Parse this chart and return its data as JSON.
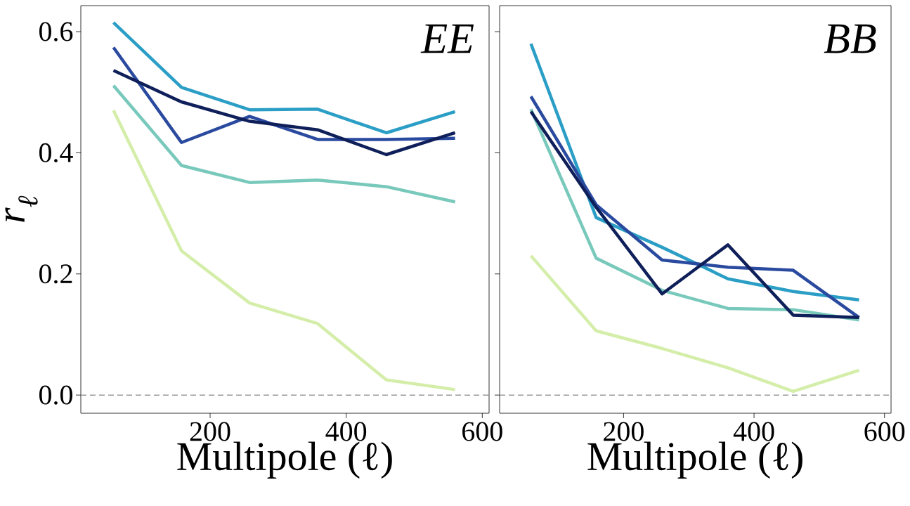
{
  "chart_data": [
    {
      "type": "line",
      "x": [
        58,
        158,
        258,
        358,
        459,
        560
      ],
      "xlim": [
        10,
        610
      ],
      "ylim": [
        -0.03,
        0.643
      ],
      "xticks": [
        200,
        400,
        600
      ],
      "yticks": [
        {
          "value": 0,
          "label": "0.0"
        },
        {
          "value": 0.2,
          "label": "0.2"
        },
        {
          "value": 0.4,
          "label": "0.4"
        },
        {
          "value": 0.6,
          "label": "0.6"
        }
      ],
      "xlabel": "Multipole (ℓ)",
      "ylabel": "r$_{ℓ}$",
      "annotations": [
        "EE"
      ],
      "marker": "none",
      "line_style": "solid",
      "ref_lines": [
        {
          "axis": "y",
          "value": 0,
          "color": "#999999",
          "line_style": "dashed"
        }
      ],
      "series": [
        {
          "color": "#d4eeaa",
          "values": [
            0.47,
            0.238,
            0.152,
            0.118,
            0.025,
            0.009
          ]
        },
        {
          "color": "#78c9bb",
          "values": [
            0.511,
            0.379,
            0.351,
            0.355,
            0.344,
            0.319
          ]
        },
        {
          "color": "#2b9ec6",
          "values": [
            0.615,
            0.508,
            0.471,
            0.472,
            0.433,
            0.468
          ]
        },
        {
          "color": "#2a4a9f",
          "values": [
            0.574,
            0.417,
            0.46,
            0.422,
            0.422,
            0.424
          ]
        },
        {
          "color": "#0f1f5a",
          "values": [
            0.536,
            0.484,
            0.452,
            0.438,
            0.397,
            0.433
          ]
        }
      ]
    },
    {
      "type": "line",
      "x": [
        58,
        158,
        259,
        360,
        460,
        561
      ],
      "xlim": [
        10,
        610
      ],
      "ylim": [
        -0.03,
        0.643
      ],
      "xticks": [
        200,
        400,
        600
      ],
      "yticks": [
        {
          "value": 0,
          "label": null
        },
        {
          "value": 0.2,
          "label": null
        },
        {
          "value": 0.4,
          "label": null
        },
        {
          "value": 0.6,
          "label": null
        }
      ],
      "tick_labels": "x",
      "xlabel": "Multipole (ℓ)",
      "annotations": [
        "BB"
      ],
      "marker": "none",
      "line_style": "solid",
      "ref_lines": [
        {
          "axis": "y",
          "value": 0,
          "color": "#999999",
          "line_style": "dashed"
        }
      ],
      "series": [
        {
          "color": "#d4eeaa",
          "values": [
            0.23,
            0.106,
            0.077,
            0.045,
            0.006,
            0.041
          ]
        },
        {
          "color": "#78c9bb",
          "values": [
            0.472,
            0.226,
            0.173,
            0.143,
            0.141,
            0.124
          ]
        },
        {
          "color": "#2b9ec6",
          "values": [
            0.58,
            0.293,
            0.244,
            0.192,
            0.171,
            0.157
          ]
        },
        {
          "color": "#2a4a9f",
          "values": [
            0.493,
            0.314,
            0.223,
            0.211,
            0.206,
            0.128
          ]
        },
        {
          "color": "#0f1f5a",
          "values": [
            0.468,
            0.31,
            0.167,
            0.248,
            0.132,
            0.128
          ]
        }
      ]
    }
  ]
}
